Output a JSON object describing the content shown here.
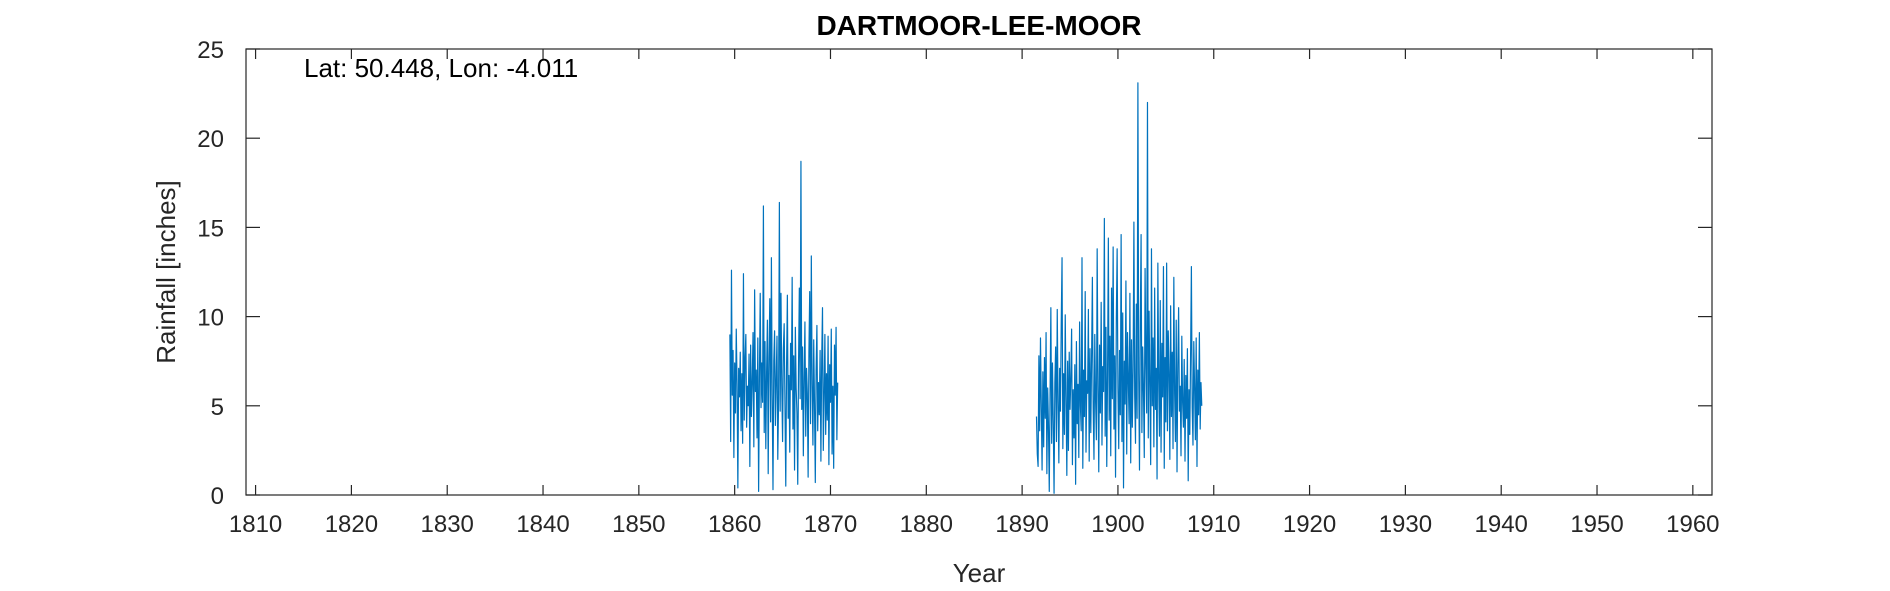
{
  "chart_data": {
    "type": "line",
    "title": "DARTMOOR-LEE-MOOR",
    "xlabel": "Year",
    "ylabel": "Rainfall [inches]",
    "annotation": "Lat: 50.448, Lon: -4.011",
    "xlim": [
      1809,
      1962
    ],
    "ylim": [
      0,
      25
    ],
    "xticks": [
      1810,
      1820,
      1830,
      1840,
      1850,
      1860,
      1870,
      1880,
      1890,
      1900,
      1910,
      1920,
      1930,
      1940,
      1950,
      1960
    ],
    "yticks": [
      0,
      5,
      10,
      15,
      20,
      25
    ],
    "grid": false,
    "line_color": "#0072BD",
    "series": [
      {
        "segments": [
          {
            "start": 1859.5,
            "step": 0.0833333,
            "values": [
              9.0,
              3.0,
              12.6,
              5.6,
              8.1,
              2.1,
              7.4,
              4.6,
              9.3,
              6.2,
              0.4,
              7.1,
              5.5,
              8.0,
              3.6,
              6.8,
              2.9,
              12.4,
              4.2,
              7.6,
              9.0,
              3.8,
              6.1,
              5.0,
              7.9,
              1.6,
              8.4,
              4.4,
              6.3,
              9.1,
              2.7,
              11.5,
              5.8,
              7.0,
              3.2,
              8.8,
              0.2,
              6.6,
              11.3,
              4.9,
              7.4,
              5.2,
              16.2,
              3.5,
              8.6,
              2.6,
              6.9,
              9.8,
              1.2,
              7.7,
              11.0,
              4.1,
              13.3,
              5.6,
              0.3,
              7.5,
              9.2,
              3.9,
              6.4,
              8.9,
              2.0,
              5.3,
              16.4,
              4.7,
              11.3,
              6.1,
              3.0,
              8.2,
              9.6,
              5.0,
              0.5,
              7.2,
              11.2,
              4.3,
              6.7,
              2.4,
              8.5,
              5.9,
              12.2,
              3.7,
              7.8,
              1.4,
              9.4,
              6.0,
              4.6,
              0.6,
              7.3,
              11.6,
              5.4,
              18.7,
              4.8,
              8.3,
              2.2,
              6.5,
              9.7,
              3.3,
              7.1,
              5.7,
              1.0,
              8.0,
              11.4,
              4.0,
              13.4,
              6.2,
              2.8,
              8.7,
              5.1,
              0.7,
              7.0,
              9.5,
              3.6,
              6.3,
              4.5,
              8.1,
              1.9,
              7.6,
              10.5,
              2.5,
              5.5,
              9.0,
              3.4,
              6.8,
              4.2,
              8.9,
              1.7,
              7.3,
              5.2,
              9.3,
              2.3,
              6.1,
              1.5,
              8.4,
              5.6,
              9.4,
              3.1,
              6.3
            ]
          },
          {
            "start": 1891.5,
            "step": 0.0833333,
            "values": [
              4.4,
              2.3,
              1.6,
              7.8,
              3.6,
              8.8,
              5.1,
              1.4,
              6.9,
              2.7,
              7.7,
              4.3,
              9.1,
              1.2,
              6.0,
              3.9,
              0.2,
              5.6,
              10.5,
              2.9,
              7.4,
              4.1,
              0.1,
              6.3,
              8.3,
              3.0,
              10.4,
              5.2,
              1.8,
              7.1,
              4.7,
              9.6,
              13.3,
              2.6,
              6.8,
              3.4,
              10.1,
              5.5,
              1.1,
              7.5,
              2.5,
              8.0,
              4.8,
              6.6,
              9.3,
              1.7,
              5.9,
              3.2,
              7.3,
              0.6,
              8.6,
              4.0,
              6.2,
              2.1,
              9.7,
              5.0,
              3.6,
              13.3,
              1.5,
              7.0,
              4.4,
              11.4,
              2.4,
              6.4,
              5.7,
              10.4,
              1.9,
              8.2,
              3.5,
              7.6,
              12.2,
              4.9,
              2.0,
              9.0,
              5.3,
              3.1,
              13.8,
              6.1,
              1.3,
              8.4,
              4.6,
              10.8,
              2.8,
              7.2,
              5.8,
              15.5,
              3.3,
              9.4,
              1.6,
              6.7,
              14.4,
              4.2,
              8.9,
              2.2,
              11.6,
              5.4,
              13.9,
              3.7,
              7.8,
              1.0,
              9.9,
              13.8,
              6.0,
              2.6,
              8.1,
              4.5,
              14.6,
              3.0,
              10.2,
              0.4,
              7.5,
              5.1,
              12.0,
              2.3,
              9.1,
              6.5,
              4.0,
              11.3,
              1.8,
              8.7,
              3.8,
              7.0,
              15.3,
              5.6,
              2.9,
              10.7,
              4.3,
              23.1,
              6.8,
              1.4,
              9.5,
              14.6,
              3.5,
              8.3,
              5.9,
              2.1,
              12.7,
              7.4,
              4.6,
              22.0,
              3.2,
              10.3,
              6.2,
              1.7,
              13.8,
              5.0,
              8.8,
              2.7,
              11.6,
              4.8,
              7.1,
              0.9,
              13.0,
              6.4,
              3.3,
              10.9,
              2.4,
              8.5,
              5.5,
              12.8,
              1.5,
              7.7,
              4.1,
              13.0,
              3.6,
              9.2,
              6.9,
              2.0,
              10.6,
              4.4,
              8.0,
              2.6,
              12.2,
              5.7,
              3.0,
              9.8,
              1.3,
              7.3,
              10.5,
              4.7,
              6.1,
              2.2,
              8.9,
              5.2,
              3.8,
              7.6,
              1.9,
              6.7,
              4.3,
              8.2,
              0.8,
              5.9,
              3.4,
              7.9,
              12.8,
              4.9,
              2.8,
              8.6,
              6.0,
              3.1,
              8.8,
              1.6,
              7.0,
              4.5,
              9.1,
              3.7,
              6.3,
              5.0
            ]
          }
        ]
      }
    ]
  }
}
